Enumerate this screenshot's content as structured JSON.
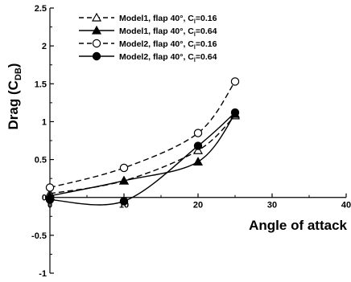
{
  "chart_data": {
    "type": "line",
    "xlabel": "Angle of attack",
    "ylabel": "Drag (C",
    "ylabel_sub": "DB",
    "ylabel_close": ")",
    "xlim": [
      0,
      40
    ],
    "ylim": [
      -1,
      2.5
    ],
    "x_ticks": [
      {
        "value": 0,
        "label": "0"
      },
      {
        "value": 10,
        "label": "10"
      },
      {
        "value": 20,
        "label": "20"
      },
      {
        "value": 30,
        "label": "30"
      },
      {
        "value": 40,
        "label": "40"
      }
    ],
    "y_ticks": [
      {
        "value": -1,
        "label": "-1"
      },
      {
        "value": -0.5,
        "label": "-0.5"
      },
      {
        "value": 0,
        "label": "0"
      },
      {
        "value": 0.5,
        "label": "0.5"
      },
      {
        "value": 1,
        "label": "1"
      },
      {
        "value": 1.5,
        "label": "1.5"
      },
      {
        "value": 2,
        "label": "2"
      },
      {
        "value": 2.5,
        "label": "2.5"
      }
    ],
    "grid": false,
    "legend_position": "top-left",
    "series": [
      {
        "name": "Model1, flap 40°, C",
        "name_sub": "l",
        "name_end": "=0.16",
        "marker": "triangle-open",
        "dash": "dashed",
        "x": [
          0,
          10,
          20,
          25
        ],
        "y": [
          0.05,
          0.22,
          0.62,
          1.08
        ]
      },
      {
        "name": "Model1, flap 40°, C",
        "name_sub": "l",
        "name_end": "=0.64",
        "marker": "triangle-filled",
        "dash": "solid",
        "x": [
          0,
          10,
          20,
          25
        ],
        "y": [
          0.02,
          0.22,
          0.47,
          1.1
        ]
      },
      {
        "name": "Model2, flap 40°, C",
        "name_sub": "l",
        "name_end": "=0.16",
        "marker": "circle-open",
        "dash": "dashed",
        "x": [
          0,
          10,
          20,
          25
        ],
        "y": [
          0.13,
          0.39,
          0.85,
          1.53
        ]
      },
      {
        "name": "Model2, flap 40°, C",
        "name_sub": "l",
        "name_end": "=0.64",
        "marker": "circle-filled",
        "dash": "solid",
        "x": [
          0,
          10,
          20,
          25
        ],
        "y": [
          -0.03,
          -0.05,
          0.68,
          1.12
        ]
      }
    ]
  }
}
